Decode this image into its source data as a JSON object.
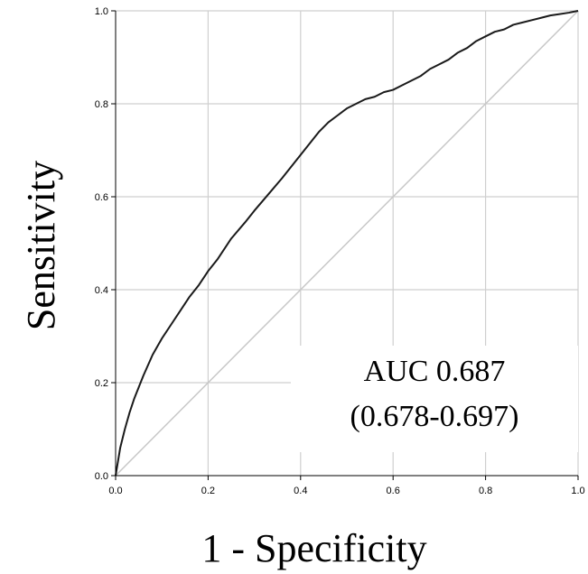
{
  "chart_data": {
    "type": "line",
    "title": "",
    "xlabel": "1 - Specificity",
    "ylabel": "Sensitivity",
    "xlim": [
      0,
      1
    ],
    "ylim": [
      0,
      1
    ],
    "grid": true,
    "x_ticks": [
      "0.0",
      "0.2",
      "0.4",
      "0.6",
      "0.8",
      "1.0"
    ],
    "y_ticks": [
      "0.0",
      "0.2",
      "0.4",
      "0.6",
      "0.8",
      "1.0"
    ],
    "annotations": [
      "AUC 0.687",
      "(0.678-0.697)"
    ],
    "colors": {
      "curve": "#1a1a1a",
      "reference": "#c8c8c8",
      "grid": "#cfcfcf",
      "axis": "#000000"
    },
    "series": [
      {
        "x": [
          0.0,
          0.005,
          0.01,
          0.02,
          0.03,
          0.04,
          0.05,
          0.06,
          0.08,
          0.1,
          0.12,
          0.14,
          0.16,
          0.18,
          0.2,
          0.22,
          0.25,
          0.28,
          0.3,
          0.33,
          0.36,
          0.38,
          0.4,
          0.42,
          0.44,
          0.46,
          0.48,
          0.5,
          0.52,
          0.54,
          0.56,
          0.58,
          0.6,
          0.62,
          0.64,
          0.66,
          0.68,
          0.7,
          0.72,
          0.74,
          0.76,
          0.78,
          0.8,
          0.82,
          0.84,
          0.86,
          0.88,
          0.9,
          0.92,
          0.94,
          0.96,
          0.98,
          1.0
        ],
        "y": [
          0.0,
          0.03,
          0.06,
          0.1,
          0.135,
          0.165,
          0.19,
          0.215,
          0.26,
          0.295,
          0.325,
          0.355,
          0.385,
          0.41,
          0.44,
          0.465,
          0.51,
          0.545,
          0.57,
          0.605,
          0.64,
          0.665,
          0.69,
          0.715,
          0.74,
          0.76,
          0.775,
          0.79,
          0.8,
          0.81,
          0.815,
          0.825,
          0.83,
          0.84,
          0.85,
          0.86,
          0.875,
          0.885,
          0.895,
          0.91,
          0.92,
          0.935,
          0.945,
          0.955,
          0.96,
          0.97,
          0.975,
          0.98,
          0.985,
          0.99,
          0.993,
          0.996,
          1.0
        ]
      }
    ]
  }
}
